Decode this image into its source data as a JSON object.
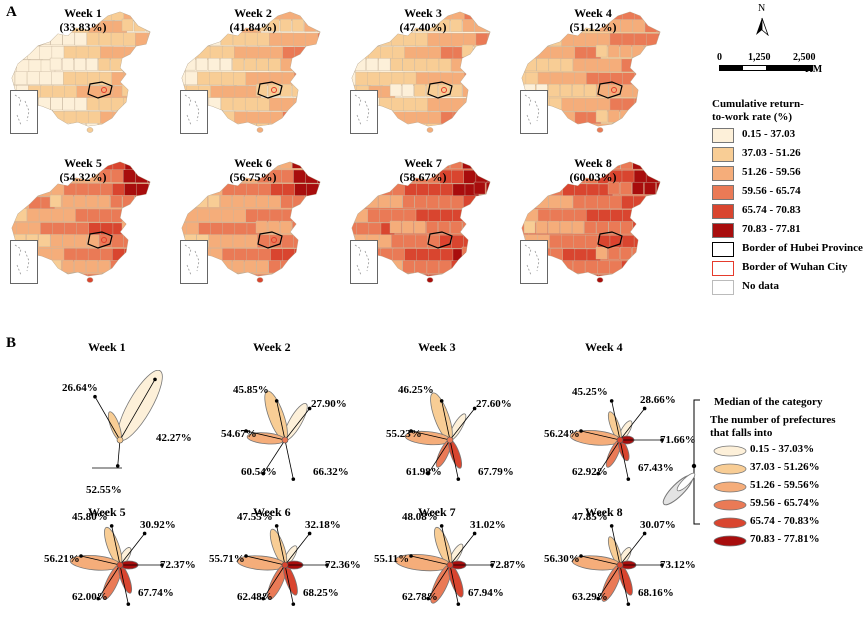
{
  "panel_a": {
    "letter": "A",
    "weeks": [
      {
        "title": "Week 1",
        "rate": "(33.83%)",
        "level": 1
      },
      {
        "title": "Week 2",
        "rate": "(41.84%)",
        "level": 2
      },
      {
        "title": "Week 3",
        "rate": "(47.40%)",
        "level": 2
      },
      {
        "title": "Week 4",
        "rate": "(51.12%)",
        "level": 3
      },
      {
        "title": "Week 5",
        "rate": "(54.32%)",
        "level": 4
      },
      {
        "title": "Week 6",
        "rate": "(56.75%)",
        "level": 4
      },
      {
        "title": "Week 7",
        "rate": "(58.67%)",
        "level": 5
      },
      {
        "title": "Week 8",
        "rate": "(60.03%)",
        "level": 5
      }
    ],
    "north": "N",
    "scale": {
      "t0": "0",
      "t1": "1,250",
      "t2": "2,500",
      "unit": "KM"
    },
    "legend_title_1": "Cumulative return-",
    "legend_title_2": "to-work rate (%)",
    "legend": [
      {
        "label": "0.15 - 37.03",
        "color": "#fdf0d9"
      },
      {
        "label": "37.03 - 51.26",
        "color": "#f8cd95"
      },
      {
        "label": "51.26 - 59.56",
        "color": "#f5ad7a"
      },
      {
        "label": "59.56 - 65.74",
        "color": "#ea7a56"
      },
      {
        "label": "65.74 - 70.83",
        "color": "#d9452f"
      },
      {
        "label": "70.83 - 77.81",
        "color": "#a80d0d"
      }
    ],
    "border_hubei": "Border of Hubei Province",
    "border_wuhan": "Border of Wuhan City",
    "no_data": "No data"
  },
  "panel_b": {
    "letter": "B",
    "weeks": [
      {
        "title": "Week 1",
        "labels": [
          "42.27%",
          "26.64%",
          "52.55%"
        ]
      },
      {
        "title": "Week 2",
        "labels": [
          "27.90%",
          "45.85%",
          "54.67%",
          "60.54%",
          "66.32%"
        ]
      },
      {
        "title": "Week 3",
        "labels": [
          "27.60%",
          "46.25%",
          "55.23%",
          "61.98%",
          "67.79%"
        ]
      },
      {
        "title": "Week 4",
        "labels": [
          "28.66%",
          "45.25%",
          "56.24%",
          "62.92%",
          "67.43%",
          "71.66%"
        ]
      },
      {
        "title": "Week 5",
        "labels": [
          "30.92%",
          "45.80%",
          "56.21%",
          "62.00%",
          "67.74%",
          "72.37%"
        ]
      },
      {
        "title": "Week 6",
        "labels": [
          "32.18%",
          "47.55%",
          "55.71%",
          "62.48%",
          "68.25%",
          "72.36%"
        ]
      },
      {
        "title": "Week 7",
        "labels": [
          "31.02%",
          "48.08%",
          "55.11%",
          "62.78%",
          "67.94%",
          "72.87%"
        ]
      },
      {
        "title": "Week 8",
        "labels": [
          "30.07%",
          "47.85%",
          "56.30%",
          "63.29%",
          "68.16%",
          "73.12%"
        ]
      }
    ],
    "legend": {
      "median": "Median of the category",
      "count_1": "The number of prefectures",
      "count_2": "that falls into",
      "items": [
        {
          "label": "0.15 - 37.03%",
          "color": "#fdf0d9"
        },
        {
          "label": "37.03 - 51.26%",
          "color": "#f8cd95"
        },
        {
          "label": "51.26 - 59.56%",
          "color": "#f5ad7a"
        },
        {
          "label": "59.56 - 65.74%",
          "color": "#ea7a56"
        },
        {
          "label": "65.74 - 70.83%",
          "color": "#d9452f"
        },
        {
          "label": "70.83 - 77.81%",
          "color": "#a80d0d"
        }
      ]
    }
  }
}
